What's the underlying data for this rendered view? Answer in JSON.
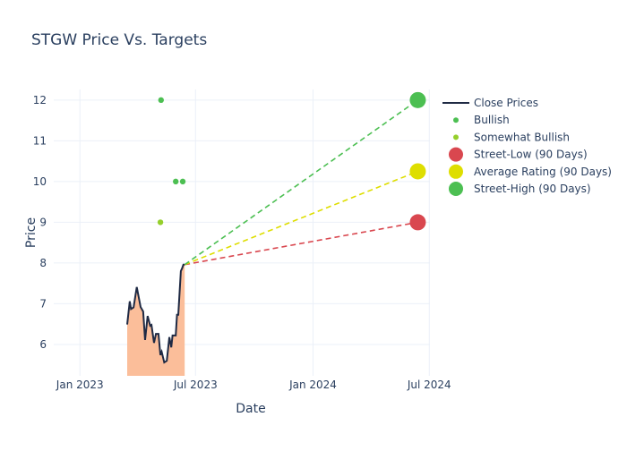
{
  "chart_data": {
    "type": "line",
    "title": "STGW Price Vs. Targets",
    "xlabel": "Date",
    "ylabel": "Price",
    "xlim": [
      "2022-11-21",
      "2024-07-02"
    ],
    "ylim": [
      5.23,
      12.26
    ],
    "x_ticks": [
      {
        "date": "2023-01-01",
        "label": "Jan 2023"
      },
      {
        "date": "2023-07-01",
        "label": "Jul 2023"
      },
      {
        "date": "2024-01-01",
        "label": "Jan 2024"
      },
      {
        "date": "2024-07-01",
        "label": "Jul 2024"
      }
    ],
    "y_ticks": [
      6,
      7,
      8,
      9,
      10,
      11,
      12
    ],
    "grid": true,
    "legend_placement": "right",
    "series": [
      {
        "name": "Close Prices",
        "kind": "line-area",
        "color": "#1f2a44",
        "fill": "#fbbe9a",
        "x": [
          "2023-03-16",
          "2023-03-20",
          "2023-03-22",
          "2023-03-26",
          "2023-03-31",
          "2023-04-06",
          "2023-04-10",
          "2023-04-13",
          "2023-04-17",
          "2023-04-21",
          "2023-04-23",
          "2023-04-27",
          "2023-04-30",
          "2023-05-04",
          "2023-05-07",
          "2023-05-09",
          "2023-05-13",
          "2023-05-17",
          "2023-05-21",
          "2023-05-24",
          "2023-05-26",
          "2023-05-31",
          "2023-06-02",
          "2023-06-04",
          "2023-06-08",
          "2023-06-10",
          "2023-06-12",
          "2023-06-14"
        ],
        "y": [
          6.49,
          7.06,
          6.87,
          6.91,
          7.41,
          6.92,
          6.81,
          6.11,
          6.7,
          6.46,
          6.48,
          6.04,
          6.26,
          6.26,
          5.74,
          5.82,
          5.56,
          5.6,
          6.18,
          5.93,
          6.22,
          6.22,
          6.73,
          6.73,
          7.8,
          7.87,
          7.96,
          7.96
        ]
      },
      {
        "name": "Bullish",
        "kind": "marker",
        "color": "#4cbf52",
        "x": [
          "2023-05-08",
          "2023-05-31",
          "2023-06-11"
        ],
        "y": [
          12,
          10,
          10
        ]
      },
      {
        "name": "Somewhat Bullish",
        "kind": "marker",
        "color": "#95cf2c",
        "x": [
          "2023-05-07"
        ],
        "y": [
          9
        ]
      },
      {
        "name": "Street-Low (90 Days)",
        "kind": "target",
        "color": "#d9474f",
        "x": [
          "2023-06-14",
          "2024-06-13"
        ],
        "y": [
          7.96,
          9
        ]
      },
      {
        "name": "Average Rating (90 Days)",
        "kind": "target",
        "color": "#dede00",
        "x": [
          "2023-06-14",
          "2024-06-13"
        ],
        "y": [
          7.96,
          10.25
        ]
      },
      {
        "name": "Street-High (90 Days)",
        "kind": "target",
        "color": "#4cbf52",
        "x": [
          "2023-06-14",
          "2024-06-13"
        ],
        "y": [
          7.96,
          12
        ]
      }
    ]
  }
}
